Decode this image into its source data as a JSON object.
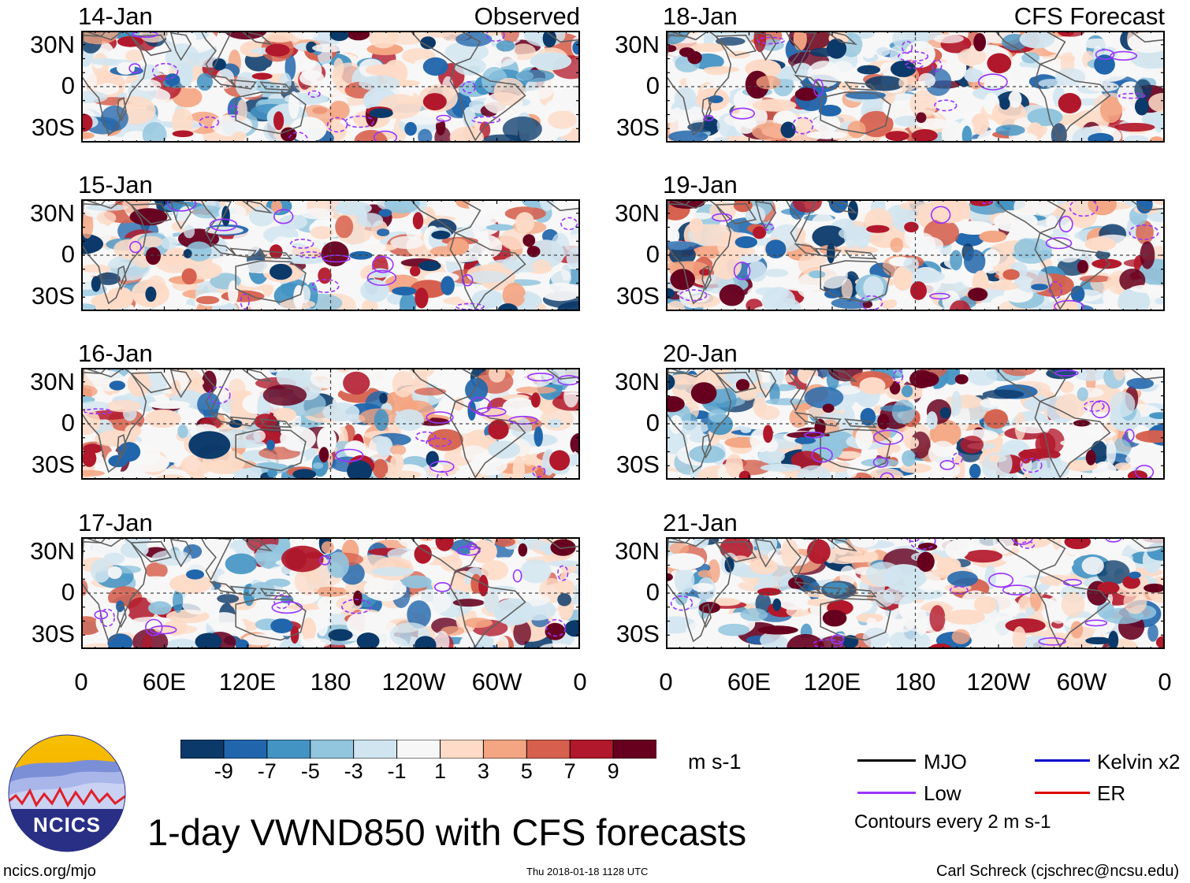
{
  "figure": {
    "title": "1-day VWND850 with CFS forecasts",
    "url_text": "ncics.org/mjo",
    "timestamp": "Thu 2018-01-18 1128 UTC",
    "credit": "Carl Schreck (cjschrec@ncsu.edu)",
    "logo_text": "NCICS"
  },
  "columns": {
    "left_label": "Observed",
    "right_label": "CFS Forecast"
  },
  "panels_left": [
    "14-Jan",
    "15-Jan",
    "16-Jan",
    "17-Jan"
  ],
  "panels_right": [
    "18-Jan",
    "19-Jan",
    "20-Jan",
    "21-Jan"
  ],
  "axes": {
    "lat_ticks": [
      "30N",
      "0",
      "30S"
    ],
    "lon_ticks": [
      "0",
      "60E",
      "120E",
      "180",
      "120W",
      "60W",
      "0"
    ]
  },
  "colorbar": {
    "unit": "m s-1",
    "labels": [
      "-9",
      "-7",
      "-5",
      "-3",
      "-1",
      "1",
      "3",
      "5",
      "7",
      "9"
    ],
    "colors": [
      "#0b3a6a",
      "#2166ac",
      "#4393c3",
      "#92c5de",
      "#d1e5f0",
      "#f7f7f7",
      "#fddbc7",
      "#f4a582",
      "#d6604d",
      "#b2182b",
      "#67001f"
    ]
  },
  "legend": {
    "items": [
      {
        "label": "MJO",
        "color": "#000000"
      },
      {
        "label": "Kelvin x2",
        "color": "#0000cc"
      },
      {
        "label": "Low",
        "color": "#9933ff"
      },
      {
        "label": "ER",
        "color": "#dd0000"
      }
    ],
    "note": "Contours every 2 m s-1"
  }
}
